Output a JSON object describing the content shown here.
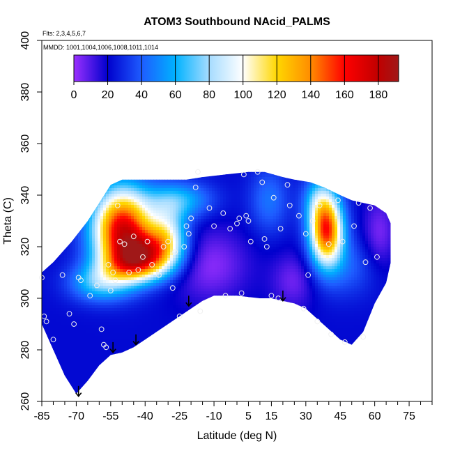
{
  "chart_data": {
    "type": "heatmap",
    "title": "ATOM3 Southbound NAcid_PALMS",
    "xlabel": "Latitude (deg N)",
    "ylabel": "Theta (C)",
    "subtitle_flights": "Flts: 2,3,4,5,6,7",
    "subtitle_dates": "MMDD: 1001,1004,1006,1008,1011,1014",
    "xlim": [
      -85,
      85
    ],
    "ylim": [
      260,
      400
    ],
    "x_ticks": [
      -85,
      -70,
      -55,
      -40,
      -25,
      -10,
      5,
      15,
      30,
      45,
      60,
      75
    ],
    "x_minor_step": 5,
    "y_ticks": [
      260,
      280,
      300,
      320,
      340,
      360,
      380,
      400
    ],
    "grid": false,
    "colorbar": {
      "placement": "top-inside",
      "ticks": [
        0,
        20,
        40,
        60,
        80,
        100,
        120,
        140,
        160,
        180
      ],
      "max": 192,
      "stops": [
        {
          "v": 0,
          "c": "#9b30ff"
        },
        {
          "v": 20,
          "c": "#0000cd"
        },
        {
          "v": 40,
          "c": "#1e5cff"
        },
        {
          "v": 60,
          "c": "#00b2ff"
        },
        {
          "v": 80,
          "c": "#a6dcff"
        },
        {
          "v": 100,
          "c": "#ffffff"
        },
        {
          "v": 120,
          "c": "#ffd700"
        },
        {
          "v": 140,
          "c": "#ff8c00"
        },
        {
          "v": 160,
          "c": "#ff0000"
        },
        {
          "v": 180,
          "c": "#c00000"
        },
        {
          "v": 192,
          "c": "#a01818"
        }
      ]
    },
    "lower_boundary": [
      [
        -85,
        290
      ],
      [
        -75,
        270
      ],
      [
        -70,
        263
      ],
      [
        -65,
        268
      ],
      [
        -60,
        274
      ],
      [
        -55,
        278
      ],
      [
        -50,
        279
      ],
      [
        -45,
        281
      ],
      [
        -40,
        284
      ],
      [
        -35,
        287
      ],
      [
        -30,
        290
      ],
      [
        -25,
        293
      ],
      [
        -20,
        296
      ],
      [
        -15,
        299
      ],
      [
        -10,
        301
      ],
      [
        0,
        301
      ],
      [
        10,
        300
      ],
      [
        15,
        300
      ],
      [
        20,
        299
      ],
      [
        25,
        298
      ],
      [
        30,
        296
      ],
      [
        35,
        292
      ],
      [
        40,
        288
      ],
      [
        45,
        284
      ],
      [
        50,
        282
      ],
      [
        55,
        287
      ],
      [
        60,
        298
      ],
      [
        65,
        306
      ],
      [
        67,
        314
      ]
    ],
    "upper_boundary": [
      [
        -85,
        310
      ],
      [
        -80,
        314
      ],
      [
        -72,
        322
      ],
      [
        -65,
        330
      ],
      [
        -60,
        337
      ],
      [
        -55,
        344
      ],
      [
        -50,
        346
      ],
      [
        -40,
        346
      ],
      [
        -30,
        346
      ],
      [
        -22,
        346
      ],
      [
        -15,
        347
      ],
      [
        -5,
        348
      ],
      [
        5,
        349
      ],
      [
        12,
        349
      ],
      [
        20,
        347
      ],
      [
        25,
        346
      ],
      [
        32,
        345
      ],
      [
        38,
        343
      ],
      [
        45,
        340
      ],
      [
        50,
        338
      ],
      [
        55,
        337
      ],
      [
        60,
        336
      ],
      [
        65,
        333
      ],
      [
        67,
        329
      ]
    ],
    "field_anomalies": [
      {
        "lat": -50,
        "theta": 327,
        "value": 165,
        "sx": 9,
        "sy": 11
      },
      {
        "lat": -37,
        "theta": 319,
        "value": 95,
        "sx": 9,
        "sy": 6
      },
      {
        "lat": -44,
        "theta": 313,
        "value": 95,
        "sx": 10,
        "sy": 5
      },
      {
        "lat": -30,
        "theta": 326,
        "value": 70,
        "sx": 6,
        "sy": 8
      },
      {
        "lat": -25,
        "theta": 338,
        "value": 60,
        "sx": 10,
        "sy": 5
      },
      {
        "lat": -60,
        "theta": 306,
        "value": 65,
        "sx": 9,
        "sy": 5
      },
      {
        "lat": 39,
        "theta": 326,
        "value": 150,
        "sx": 5,
        "sy": 9
      },
      {
        "lat": 36,
        "theta": 338,
        "value": 60,
        "sx": 5,
        "sy": 7
      },
      {
        "lat": 47,
        "theta": 312,
        "value": 40,
        "sx": 10,
        "sy": 8
      },
      {
        "lat": 14,
        "theta": 338,
        "value": 45,
        "sx": 6,
        "sy": 9
      },
      {
        "lat": -12,
        "theta": 313,
        "value": 2,
        "sx": 12,
        "sy": 10
      },
      {
        "lat": 25,
        "theta": 307,
        "value": 5,
        "sx": 7,
        "sy": 8
      },
      {
        "lat": 62,
        "theta": 325,
        "value": 4,
        "sx": 5,
        "sy": 10
      }
    ],
    "field_baseline": 22,
    "sample_points": [
      [
        -85,
        308
      ],
      [
        -84,
        293
      ],
      [
        -83,
        291
      ],
      [
        -80,
        284
      ],
      [
        -76,
        309
      ],
      [
        -73,
        294
      ],
      [
        -71,
        290
      ],
      [
        -69,
        308
      ],
      [
        -68,
        307
      ],
      [
        -64,
        301
      ],
      [
        -61,
        305
      ],
      [
        -59,
        288
      ],
      [
        -58,
        282
      ],
      [
        -57,
        281
      ],
      [
        -56,
        313
      ],
      [
        -55,
        303
      ],
      [
        -54,
        310
      ],
      [
        -53,
        307
      ],
      [
        -52,
        336
      ],
      [
        -51,
        322
      ],
      [
        -49,
        321
      ],
      [
        -47,
        310
      ],
      [
        -45,
        324
      ],
      [
        -43,
        311
      ],
      [
        -41,
        316
      ],
      [
        -39,
        322
      ],
      [
        -37,
        313
      ],
      [
        -34,
        309
      ],
      [
        -32,
        320
      ],
      [
        -30,
        322
      ],
      [
        -28,
        304
      ],
      [
        -27,
        318
      ],
      [
        -25,
        293
      ],
      [
        -23,
        320
      ],
      [
        -22,
        328
      ],
      [
        -21,
        325
      ],
      [
        -20,
        331
      ],
      [
        -18,
        343
      ],
      [
        -17,
        349
      ],
      [
        -16,
        295
      ],
      [
        -12,
        335
      ],
      [
        -10,
        328
      ],
      [
        -6,
        333
      ],
      [
        -5,
        301
      ],
      [
        -3,
        327
      ],
      [
        0,
        329
      ],
      [
        1,
        331
      ],
      [
        2,
        302
      ],
      [
        3,
        348
      ],
      [
        4,
        332
      ],
      [
        5,
        330
      ],
      [
        6,
        322
      ],
      [
        9,
        349
      ],
      [
        11,
        345
      ],
      [
        12,
        323
      ],
      [
        13,
        320
      ],
      [
        15,
        301
      ],
      [
        16,
        339
      ],
      [
        18,
        300
      ],
      [
        19,
        327
      ],
      [
        22,
        344
      ],
      [
        23,
        336
      ],
      [
        27,
        332
      ],
      [
        29,
        296
      ],
      [
        30,
        325
      ],
      [
        31,
        309
      ],
      [
        33,
        330
      ],
      [
        35,
        291
      ],
      [
        36,
        336
      ],
      [
        40,
        321
      ],
      [
        41,
        286
      ],
      [
        44,
        338
      ],
      [
        46,
        322
      ],
      [
        47,
        283
      ],
      [
        51,
        328
      ],
      [
        53,
        337
      ],
      [
        55,
        285
      ],
      [
        56,
        314
      ],
      [
        58,
        335
      ],
      [
        61,
        316
      ]
    ],
    "flight_arrows": [
      {
        "lat": -54,
        "theta_from": 283,
        "theta_to": 279
      },
      {
        "lat": -44,
        "theta_from": 286,
        "theta_to": 282
      },
      {
        "lat": -21,
        "theta_from": 301,
        "theta_to": 297
      },
      {
        "lat": 20,
        "theta_from": 303,
        "theta_to": 299
      },
      {
        "lat": -69,
        "theta_from": 266,
        "theta_to": 262
      }
    ]
  }
}
